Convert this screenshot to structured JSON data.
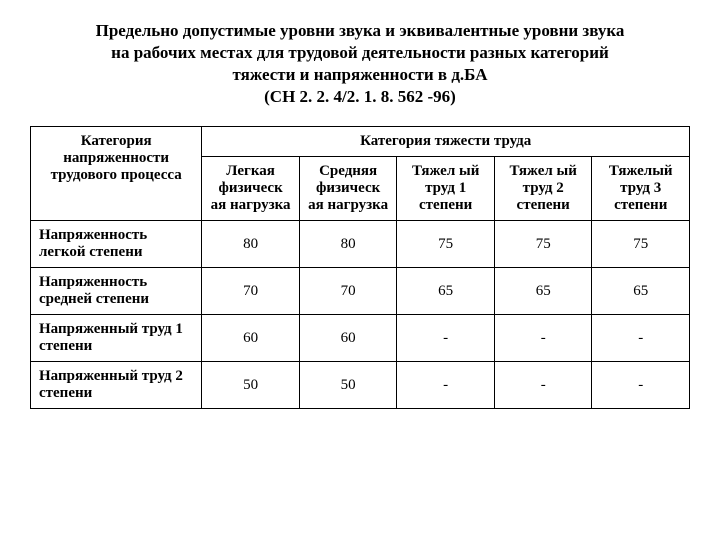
{
  "title_lines": [
    "Предельно допустимые уровни звука и эквивалентные уровни звука",
    "на рабочих местах для трудовой деятельности разных категорий",
    "тяжести и напряженности в д.БА",
    "(СН 2. 2. 4/2. 1. 8. 562 -96)"
  ],
  "header": {
    "rowgroup": "Категория напряженности трудового процесса",
    "colgroup": "Категория тяжести труда",
    "cols": [
      "Легкая физическ ая нагрузка",
      "Средняя физическ ая нагрузка",
      "Тяжел ый труд 1 степени",
      "Тяжел ый труд 2 степени",
      "Тяжелый труд 3 степени"
    ]
  },
  "rows": [
    {
      "label": "Напряженность легкой степени",
      "vals": [
        "80",
        "80",
        "75",
        "75",
        "75"
      ]
    },
    {
      "label": "Напряженность средней степени",
      "vals": [
        "70",
        "70",
        "65",
        "65",
        "65"
      ]
    },
    {
      "label": "Напряженный труд 1 степени",
      "vals": [
        "60",
        "60",
        "-",
        "-",
        "-"
      ]
    },
    {
      "label": "Напряженный труд 2 степени",
      "vals": [
        "50",
        "50",
        "-",
        "-",
        "-"
      ]
    }
  ]
}
